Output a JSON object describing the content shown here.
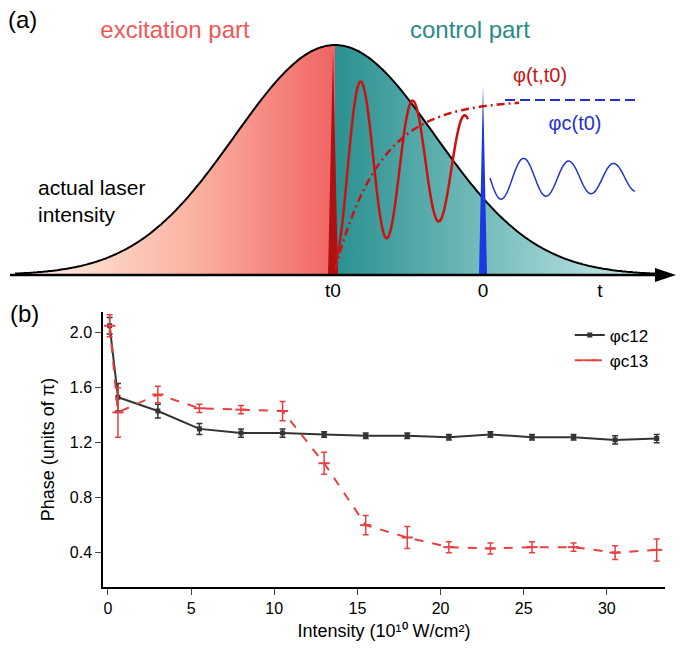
{
  "diagram": {
    "label": "(a)",
    "excitation_label": "excitation part",
    "control_label": "control part",
    "intensity_label": "actual laser intensity",
    "phase_curve_label": "φ(t,t0)",
    "control_phase_label": "φc(t0)",
    "axis_labels": [
      "t0",
      "0",
      "t"
    ]
  },
  "chart_data": {
    "type": "line",
    "panel_label": "(b)",
    "x_label": "Intensity (10¹⁰ W/cm²)",
    "y_label": "Phase (units of π)",
    "x": [
      0.1,
      0.6,
      3,
      5.5,
      8,
      10.5,
      13,
      15.5,
      18,
      20.5,
      23,
      25.5,
      28,
      30.5,
      33
    ],
    "series": [
      {
        "name": "φc12",
        "color": "#333333",
        "line_style": "solid",
        "marker": "square",
        "values": [
          2.05,
          1.53,
          1.43,
          1.3,
          1.27,
          1.27,
          1.26,
          1.25,
          1.25,
          1.24,
          1.26,
          1.24,
          1.24,
          1.22,
          1.23
        ],
        "error": [
          0.06,
          0.1,
          0.05,
          0.04,
          0.03,
          0.03,
          0.02,
          0.02,
          0.02,
          0.02,
          0.02,
          0.02,
          0.02,
          0.03,
          0.03
        ]
      },
      {
        "name": "φc13",
        "color": "#e84040",
        "line_style": "dash",
        "marker": "line-ew",
        "values": [
          2.05,
          1.42,
          1.55,
          1.45,
          1.44,
          1.43,
          1.05,
          0.6,
          0.51,
          0.44,
          0.43,
          0.44,
          0.44,
          0.4,
          0.42
        ],
        "error": [
          0.08,
          0.18,
          0.06,
          0.03,
          0.03,
          0.07,
          0.08,
          0.07,
          0.08,
          0.04,
          0.04,
          0.04,
          0.03,
          0.05,
          0.08
        ]
      }
    ],
    "xlim": [
      -0.3,
      33.5
    ],
    "xticks": [
      0,
      5,
      10,
      15,
      20,
      25,
      30
    ],
    "ylim": [
      0.15,
      2.15
    ],
    "yticks": [
      0.4,
      0.8,
      1.2,
      1.6,
      {
        "value": 2,
        "label": "2.0"
      }
    ],
    "grid": false,
    "legend": "top right"
  }
}
